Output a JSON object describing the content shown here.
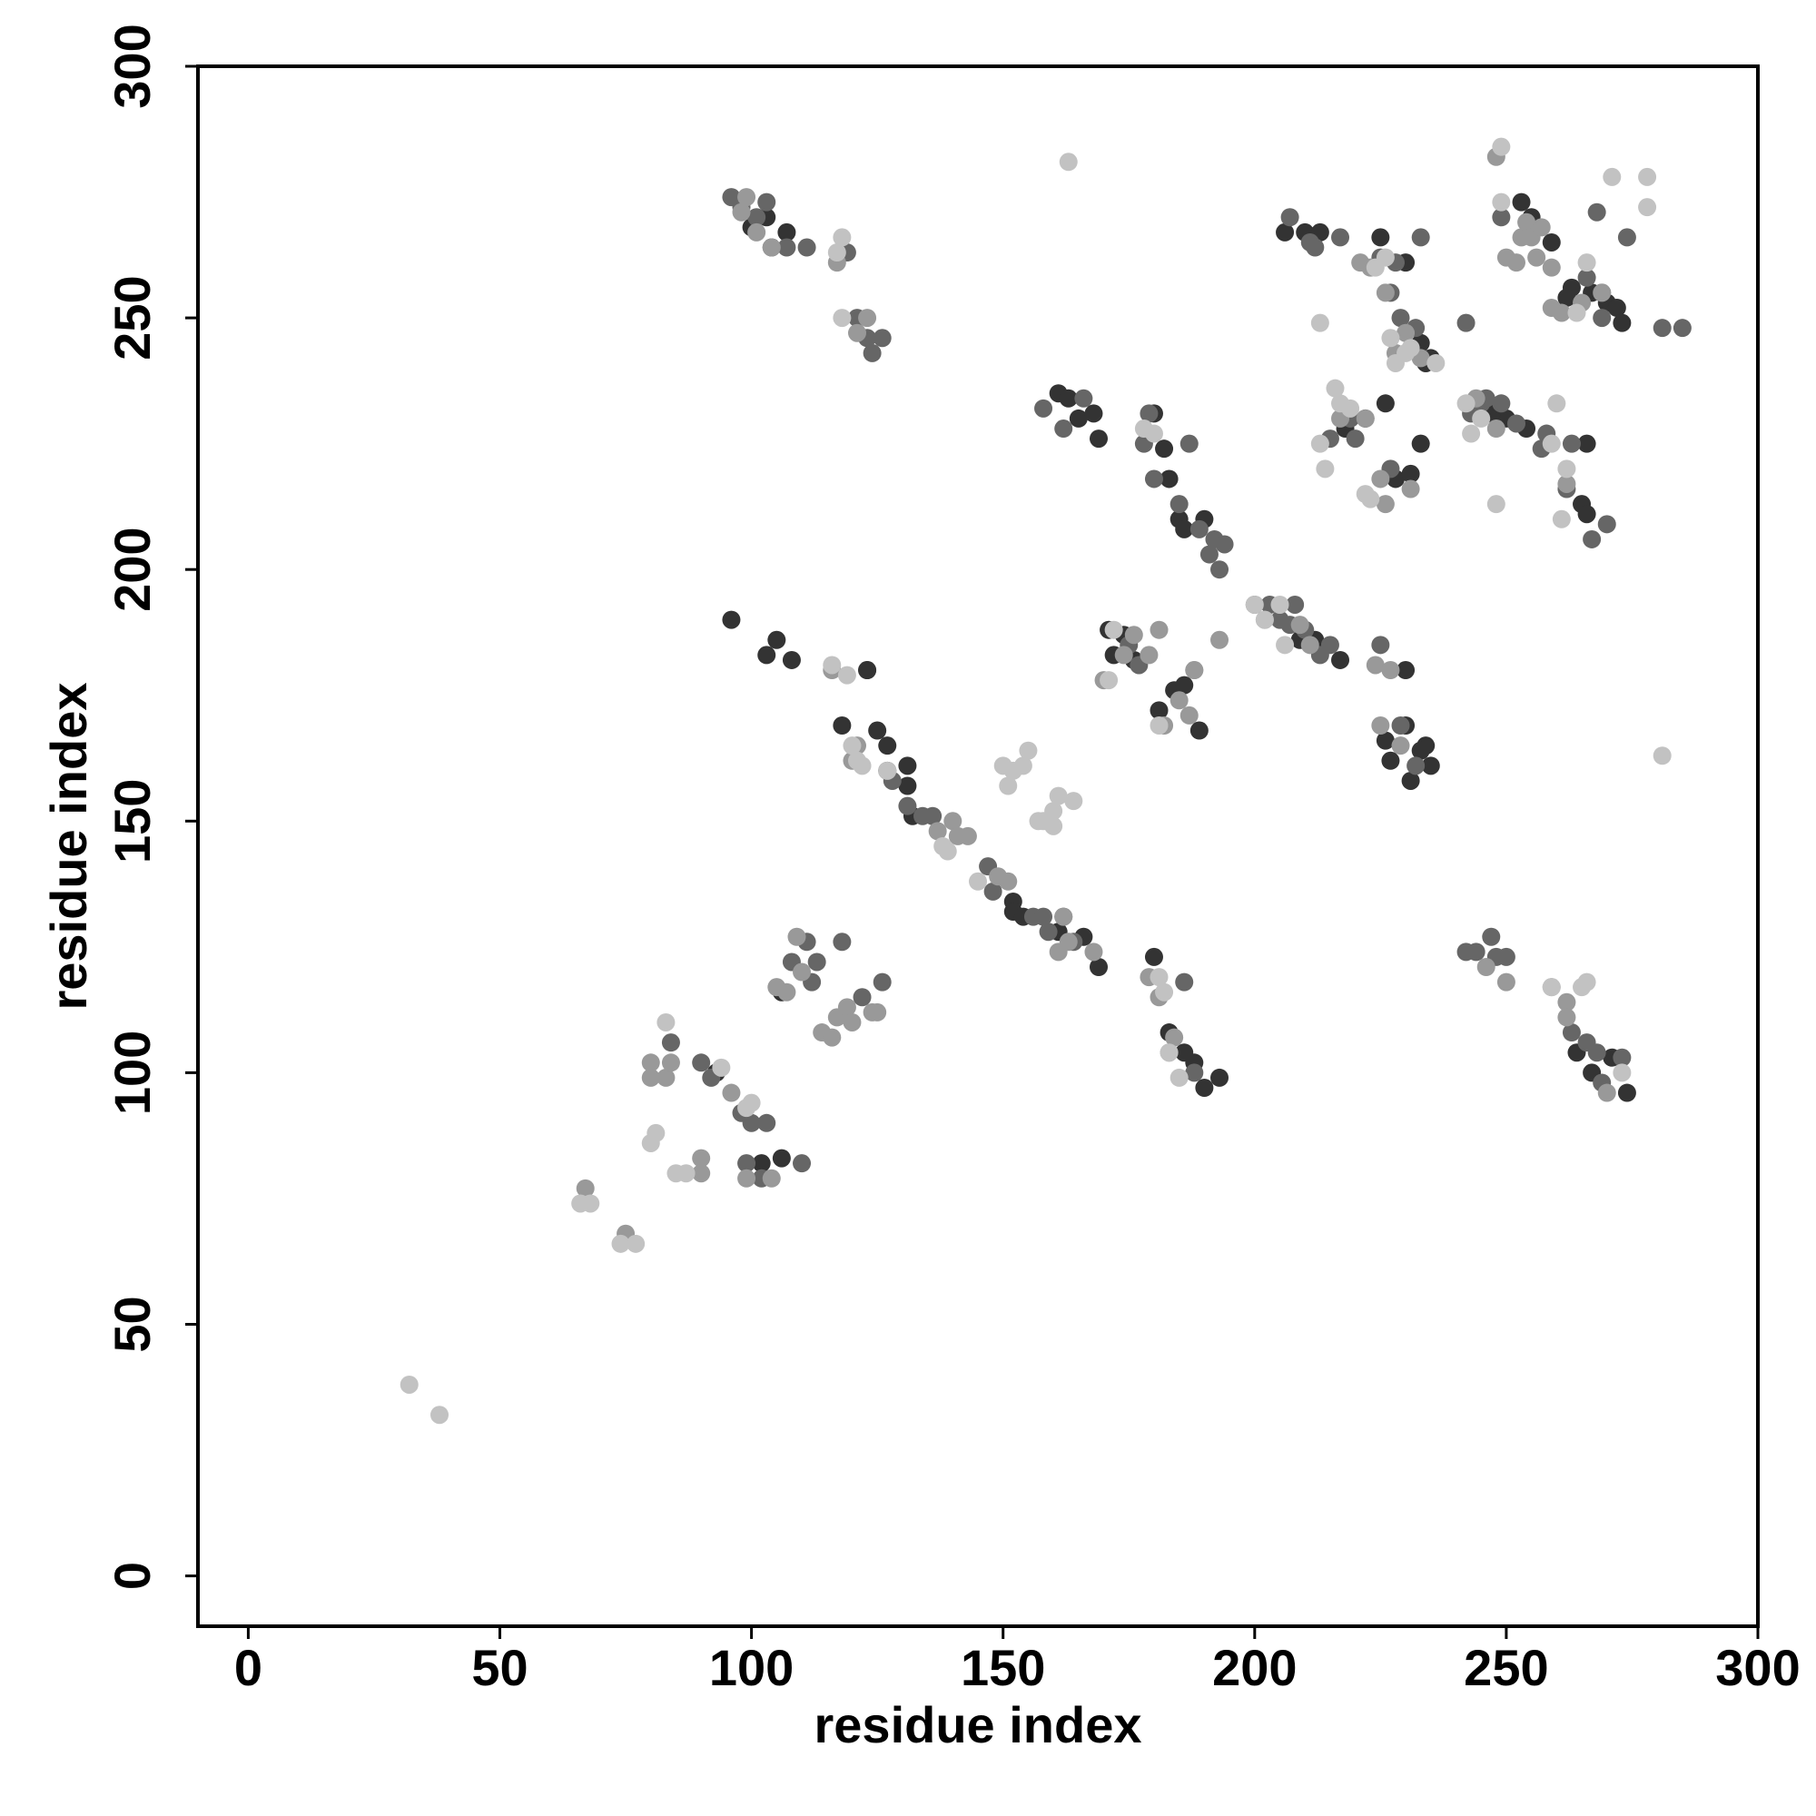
{
  "chart_data": {
    "type": "scatter",
    "xlabel": "residue index",
    "ylabel": "residue index",
    "xlim": [
      -10,
      300
    ],
    "ylim": [
      -10,
      300
    ],
    "xticks": [
      0,
      50,
      100,
      150,
      200,
      250,
      300
    ],
    "yticks": [
      0,
      50,
      100,
      150,
      200,
      250,
      300
    ],
    "grid": false,
    "series": [
      {
        "color": "#333333",
        "x": [
          127,
          125,
          123,
          161,
          166,
          169,
          185,
          186,
          190,
          209,
          212,
          231,
          230,
          226,
          234,
          228,
          231,
          233,
          226,
          250,
          253,
          255,
          263,
          267,
          270,
          272,
          265,
          266,
          266,
          264,
          267,
          271,
          274,
          100,
          103,
          104,
          107,
          102,
          106,
          93,
          106,
          127,
          131,
          131,
          132,
          152,
          152,
          154,
          172,
          171,
          174,
          176,
          181,
          184,
          186,
          189,
          183,
          186,
          188,
          190,
          193,
          180,
          218,
          222,
          206,
          210,
          213,
          225,
          230,
          234,
          235,
          233,
          247,
          254,
          259,
          262,
          269,
          273,
          161,
          163,
          165,
          168,
          169,
          180,
          182,
          183,
          217,
          230,
          227,
          233,
          235,
          96,
          103,
          105,
          108,
          123,
          118
        ],
        "y": [
          165,
          168,
          180,
          128,
          127,
          121,
          210,
          208,
          210,
          186,
          186,
          158,
          169,
          166,
          165,
          218,
          219,
          225,
          233,
          230,
          273,
          270,
          256,
          255,
          253,
          252,
          213,
          211,
          225,
          104,
          100,
          103,
          96,
          268,
          270,
          264,
          267,
          82,
          83,
          100,
          116,
          160,
          161,
          157,
          151,
          134,
          132,
          131,
          183,
          188,
          187,
          182,
          172,
          176,
          177,
          168,
          108,
          104,
          102,
          97,
          99,
          123,
          228,
          230,
          267,
          267,
          267,
          266,
          261,
          241,
          242,
          245,
          231,
          228,
          265,
          254,
          255,
          249,
          235,
          234,
          230,
          231,
          226,
          231,
          224,
          218,
          182,
          180,
          162,
          164,
          161,
          190,
          183,
          186,
          182,
          180,
          169
        ]
      },
      {
        "color": "#666666",
        "x": [
          96,
          98,
          101,
          103,
          107,
          111,
          119,
          121,
          123,
          124,
          126,
          84,
          90,
          92,
          98,
          100,
          103,
          99,
          102,
          110,
          108,
          112,
          113,
          118,
          122,
          126,
          128,
          131,
          134,
          136,
          147,
          148,
          156,
          158,
          159,
          162,
          164,
          178,
          179,
          185,
          187,
          189,
          191,
          192,
          193,
          194,
          158,
          162,
          166,
          175,
          177,
          180,
          186,
          188,
          200,
          203,
          205,
          207,
          208,
          210,
          213,
          215,
          225,
          229,
          232,
          207,
          211,
          212,
          217,
          225,
          227,
          228,
          229,
          232,
          242,
          215,
          219,
          220,
          227,
          233,
          243,
          245,
          246,
          249,
          252,
          249,
          257,
          263,
          266,
          268,
          269,
          274,
          281,
          285,
          258,
          262,
          267,
          270,
          242,
          244,
          247,
          248,
          250,
          263,
          266,
          268,
          269,
          273,
          111
        ],
        "y": [
          274,
          272,
          270,
          273,
          264,
          264,
          263,
          250,
          246,
          243,
          246,
          106,
          102,
          99,
          92,
          90,
          90,
          82,
          79,
          82,
          122,
          118,
          122,
          126,
          115,
          118,
          158,
          153,
          151,
          151,
          141,
          136,
          131,
          131,
          128,
          131,
          126,
          225,
          231,
          213,
          225,
          208,
          203,
          206,
          200,
          205,
          232,
          228,
          234,
          185,
          181,
          218,
          118,
          100,
          193,
          193,
          190,
          189,
          193,
          188,
          183,
          185,
          185,
          169,
          161,
          270,
          265,
          264,
          266,
          262,
          255,
          261,
          250,
          248,
          249,
          226,
          230,
          226,
          220,
          266,
          231,
          233,
          234,
          233,
          229,
          270,
          224,
          225,
          258,
          271,
          250,
          266,
          248,
          248,
          227,
          216,
          206,
          209,
          124,
          124,
          127,
          123,
          123,
          108,
          106,
          104,
          98,
          103,
          126
        ]
      },
      {
        "color": "#999999",
        "x": [
          98,
          99,
          101,
          104,
          117,
          121,
          123,
          80,
          80,
          83,
          84,
          90,
          90,
          96,
          99,
          104,
          67,
          75,
          105,
          107,
          109,
          110,
          114,
          116,
          117,
          119,
          120,
          124,
          125,
          121,
          120,
          116,
          137,
          140,
          141,
          143,
          149,
          151,
          161,
          162,
          163,
          168,
          179,
          181,
          183,
          184,
          188,
          170,
          174,
          176,
          179,
          182,
          187,
          188,
          181,
          185,
          193,
          202,
          209,
          211,
          224,
          227,
          225,
          229,
          221,
          223,
          226,
          228,
          230,
          233,
          217,
          218,
          222,
          225,
          226,
          231,
          244,
          248,
          250,
          252,
          248,
          256,
          259,
          261,
          265,
          253,
          254,
          255,
          257,
          259,
          262,
          246,
          250,
          259,
          262,
          262,
          270,
          269
        ],
        "y": [
          271,
          274,
          267,
          264,
          261,
          247,
          250,
          102,
          99,
          99,
          102,
          83,
          80,
          96,
          79,
          79,
          77,
          68,
          117,
          116,
          127,
          120,
          108,
          107,
          111,
          113,
          110,
          112,
          112,
          165,
          162,
          180,
          148,
          150,
          147,
          147,
          139,
          138,
          124,
          131,
          126,
          124,
          119,
          115,
          104,
          107,
          180,
          178,
          183,
          187,
          183,
          169,
          171,
          180,
          188,
          174,
          186,
          190,
          189,
          185,
          181,
          180,
          169,
          165,
          261,
          260,
          255,
          243,
          247,
          242,
          230,
          232,
          230,
          218,
          213,
          216,
          234,
          228,
          262,
          261,
          282,
          262,
          252,
          251,
          253,
          266,
          269,
          266,
          268,
          260,
          217,
          121,
          118,
          117,
          114,
          111,
          96,
          255
        ]
      },
      {
        "color": "#c2c2c2",
        "x": [
          32,
          38,
          66,
          68,
          74,
          77,
          80,
          81,
          83,
          85,
          87,
          94,
          99,
          100,
          117,
          118,
          118,
          120,
          121,
          122,
          116,
          119,
          127,
          138,
          145,
          139,
          150,
          151,
          152,
          154,
          155,
          157,
          158,
          160,
          160,
          161,
          164,
          163,
          171,
          172,
          178,
          180,
          181,
          182,
          183,
          185,
          181,
          200,
          202,
          205,
          206,
          213,
          214,
          216,
          217,
          219,
          222,
          223,
          224,
          226,
          213,
          227,
          228,
          230,
          231,
          236,
          248,
          249,
          249,
          260,
          264,
          271,
          278,
          278,
          281,
          262,
          259,
          265,
          266,
          259,
          261,
          266,
          242,
          243,
          245,
          273
        ],
        "y": [
          38,
          32,
          74,
          74,
          66,
          66,
          86,
          88,
          110,
          80,
          80,
          101,
          93,
          94,
          263,
          266,
          250,
          165,
          162,
          161,
          181,
          179,
          160,
          145,
          138,
          144,
          161,
          157,
          160,
          161,
          164,
          150,
          150,
          152,
          149,
          155,
          154,
          281,
          178,
          188,
          228,
          227,
          119,
          116,
          104,
          99,
          169,
          193,
          190,
          193,
          185,
          225,
          220,
          236,
          233,
          232,
          215,
          214,
          260,
          262,
          249,
          246,
          241,
          243,
          244,
          241,
          213,
          284,
          273,
          233,
          251,
          278,
          278,
          272,
          163,
          220,
          117,
          117,
          118,
          225,
          210,
          261,
          233,
          227,
          230,
          100
        ]
      }
    ]
  }
}
